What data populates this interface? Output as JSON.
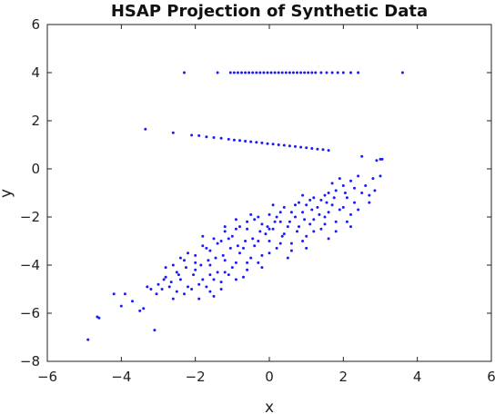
{
  "chart_data": {
    "type": "scatter",
    "title": "HSAP Projection of Synthetic Data",
    "xlabel": "x",
    "ylabel": "y",
    "xlim": [
      -6,
      6
    ],
    "ylim": [
      -8,
      6
    ],
    "xticks": [
      -6,
      -4,
      -2,
      0,
      2,
      4,
      6
    ],
    "yticks": [
      -8,
      -6,
      -4,
      -2,
      0,
      2,
      4,
      6
    ],
    "xtick_labels": [
      "−6",
      "−4",
      "−2",
      "0",
      "2",
      "4",
      "6"
    ],
    "ytick_labels": [
      "−8",
      "−6",
      "−4",
      "−2",
      "0",
      "2",
      "4",
      "6"
    ],
    "grid": false,
    "marker_color": "#1a1aff",
    "series": [
      {
        "group": "band-y4",
        "points": [
          [
            -2.3,
            4.0
          ],
          [
            -1.4,
            4.0
          ],
          [
            -1.05,
            4.0
          ],
          [
            -0.95,
            4.0
          ],
          [
            -0.85,
            4.0
          ],
          [
            -0.75,
            4.0
          ],
          [
            -0.65,
            4.0
          ],
          [
            -0.55,
            4.0
          ],
          [
            -0.45,
            4.0
          ],
          [
            -0.35,
            4.0
          ],
          [
            -0.25,
            4.0
          ],
          [
            -0.15,
            4.0
          ],
          [
            -0.05,
            4.0
          ],
          [
            0.05,
            4.0
          ],
          [
            0.15,
            4.0
          ],
          [
            0.25,
            4.0
          ],
          [
            0.35,
            4.0
          ],
          [
            0.45,
            4.0
          ],
          [
            0.55,
            4.0
          ],
          [
            0.65,
            4.0
          ],
          [
            0.75,
            4.0
          ],
          [
            0.85,
            4.0
          ],
          [
            0.95,
            4.0
          ],
          [
            1.05,
            4.0
          ],
          [
            1.15,
            4.0
          ],
          [
            1.25,
            4.0
          ],
          [
            1.4,
            4.0
          ],
          [
            1.55,
            4.0
          ],
          [
            1.7,
            4.0
          ],
          [
            1.85,
            4.0
          ],
          [
            2.0,
            4.0
          ],
          [
            2.2,
            4.0
          ],
          [
            2.4,
            4.0
          ],
          [
            3.6,
            4.0
          ]
        ]
      },
      {
        "group": "line-upper",
        "points": [
          [
            -3.35,
            1.65
          ],
          [
            -2.6,
            1.5
          ],
          [
            -2.1,
            1.4
          ],
          [
            -1.9,
            1.38
          ],
          [
            -1.7,
            1.33
          ],
          [
            -1.5,
            1.3
          ],
          [
            -1.3,
            1.27
          ],
          [
            -1.1,
            1.23
          ],
          [
            -0.95,
            1.2
          ],
          [
            -0.8,
            1.18
          ],
          [
            -0.65,
            1.15
          ],
          [
            -0.5,
            1.13
          ],
          [
            -0.35,
            1.1
          ],
          [
            -0.2,
            1.08
          ],
          [
            -0.05,
            1.05
          ],
          [
            0.1,
            1.03
          ],
          [
            0.25,
            1.0
          ],
          [
            0.4,
            0.98
          ],
          [
            0.55,
            0.95
          ],
          [
            0.7,
            0.93
          ],
          [
            0.85,
            0.9
          ],
          [
            1.0,
            0.88
          ],
          [
            1.15,
            0.85
          ],
          [
            1.3,
            0.82
          ],
          [
            1.45,
            0.8
          ],
          [
            1.6,
            0.77
          ],
          [
            2.5,
            0.52
          ],
          [
            3.0,
            0.4
          ]
        ]
      },
      {
        "group": "cloud",
        "points": [
          [
            -4.9,
            -7.1
          ],
          [
            -4.6,
            -6.2
          ],
          [
            -4.65,
            -6.15
          ],
          [
            -4.2,
            -5.2
          ],
          [
            -3.9,
            -5.2
          ],
          [
            -4.0,
            -5.7
          ],
          [
            -3.7,
            -5.5
          ],
          [
            -3.5,
            -5.9
          ],
          [
            -3.1,
            -6.7
          ],
          [
            -3.2,
            -5.0
          ],
          [
            -3.0,
            -4.8
          ],
          [
            -2.8,
            -4.5
          ],
          [
            -2.6,
            -4.0
          ],
          [
            -2.5,
            -4.3
          ],
          [
            -2.3,
            -3.8
          ],
          [
            -2.2,
            -3.5
          ],
          [
            -2.0,
            -3.6
          ],
          [
            -1.8,
            -3.2
          ],
          [
            -1.6,
            -3.4
          ],
          [
            -1.5,
            -2.9
          ],
          [
            -1.3,
            -3.0
          ],
          [
            -1.2,
            -2.6
          ],
          [
            -1.0,
            -2.8
          ],
          [
            -0.8,
            -2.4
          ],
          [
            -0.6,
            -2.5
          ],
          [
            -0.4,
            -2.1
          ],
          [
            -0.2,
            -2.3
          ],
          [
            0.0,
            -1.9
          ],
          [
            0.2,
            -2.0
          ],
          [
            0.4,
            -1.6
          ],
          [
            0.6,
            -1.8
          ],
          [
            0.8,
            -1.4
          ],
          [
            1.0,
            -1.5
          ],
          [
            1.2,
            -1.2
          ],
          [
            1.4,
            -1.3
          ],
          [
            1.6,
            -1.0
          ],
          [
            1.8,
            -0.9
          ],
          [
            2.0,
            -0.7
          ],
          [
            2.2,
            -0.5
          ],
          [
            2.4,
            -0.3
          ],
          [
            2.6,
            -0.7
          ],
          [
            2.8,
            -0.4
          ],
          [
            3.0,
            -0.3
          ],
          [
            2.9,
            0.35
          ],
          [
            3.05,
            0.4
          ],
          [
            1.9,
            -0.4
          ],
          [
            -2.4,
            -4.6
          ],
          [
            -2.2,
            -4.9
          ],
          [
            -2.0,
            -4.2
          ],
          [
            -1.8,
            -4.6
          ],
          [
            -1.6,
            -4.0
          ],
          [
            -1.4,
            -4.3
          ],
          [
            -1.2,
            -3.8
          ],
          [
            -1.0,
            -4.1
          ],
          [
            -0.8,
            -3.5
          ],
          [
            -0.6,
            -3.9
          ],
          [
            -0.4,
            -3.2
          ],
          [
            -0.2,
            -3.6
          ],
          [
            0.0,
            -3.0
          ],
          [
            0.2,
            -3.3
          ],
          [
            0.4,
            -2.7
          ],
          [
            0.6,
            -3.1
          ],
          [
            0.8,
            -2.4
          ],
          [
            1.0,
            -2.8
          ],
          [
            1.2,
            -2.1
          ],
          [
            1.4,
            -2.5
          ],
          [
            1.6,
            -1.8
          ],
          [
            1.8,
            -2.2
          ],
          [
            2.0,
            -1.6
          ],
          [
            2.2,
            -1.9
          ],
          [
            -2.7,
            -4.9
          ],
          [
            -2.5,
            -5.1
          ],
          [
            -2.1,
            -5.0
          ],
          [
            -1.7,
            -4.9
          ],
          [
            -1.5,
            -5.3
          ],
          [
            -1.3,
            -4.7
          ],
          [
            -2.9,
            -5.0
          ],
          [
            -2.6,
            -5.4
          ],
          [
            -2.3,
            -5.2
          ],
          [
            -1.9,
            -5.4
          ],
          [
            -1.6,
            -4.4
          ],
          [
            -1.1,
            -4.4
          ],
          [
            -0.9,
            -3.9
          ],
          [
            -0.7,
            -3.3
          ],
          [
            -0.5,
            -3.7
          ],
          [
            -0.3,
            -3.0
          ],
          [
            -0.1,
            -2.7
          ],
          [
            0.1,
            -2.5
          ],
          [
            0.3,
            -2.2
          ],
          [
            0.5,
            -2.4
          ],
          [
            0.7,
            -2.0
          ],
          [
            0.9,
            -1.8
          ],
          [
            1.1,
            -2.3
          ],
          [
            1.3,
            -1.6
          ],
          [
            1.5,
            -2.0
          ],
          [
            1.7,
            -1.5
          ],
          [
            1.9,
            -1.7
          ],
          [
            2.1,
            -1.2
          ],
          [
            2.3,
            -1.4
          ],
          [
            2.5,
            -1.0
          ],
          [
            2.7,
            -1.1
          ],
          [
            2.3,
            -0.8
          ],
          [
            2.05,
            -1.0
          ],
          [
            1.75,
            -1.2
          ],
          [
            1.55,
            -1.4
          ],
          [
            1.35,
            -1.9
          ],
          [
            1.15,
            -1.7
          ],
          [
            0.95,
            -2.1
          ],
          [
            0.75,
            -2.6
          ],
          [
            0.55,
            -2.2
          ],
          [
            0.35,
            -2.8
          ],
          [
            0.15,
            -2.2
          ],
          [
            -0.05,
            -2.4
          ],
          [
            -0.25,
            -2.6
          ],
          [
            -0.45,
            -2.9
          ],
          [
            -0.65,
            -3.0
          ],
          [
            -0.85,
            -3.2
          ],
          [
            -1.05,
            -3.3
          ],
          [
            -1.25,
            -3.6
          ],
          [
            -1.45,
            -3.7
          ],
          [
            -1.65,
            -3.8
          ],
          [
            -1.85,
            -4.0
          ],
          [
            -2.05,
            -4.4
          ],
          [
            -2.25,
            -4.1
          ],
          [
            -2.45,
            -4.4
          ],
          [
            -2.65,
            -4.7
          ],
          [
            -2.85,
            -4.6
          ],
          [
            -3.05,
            -5.2
          ],
          [
            -3.3,
            -4.9
          ],
          [
            -3.4,
            -5.8
          ],
          [
            -2.0,
            -3.9
          ],
          [
            -1.7,
            -3.3
          ],
          [
            -1.4,
            -3.1
          ],
          [
            -1.1,
            -2.9
          ],
          [
            -0.9,
            -2.5
          ],
          [
            -0.6,
            -2.2
          ],
          [
            -0.3,
            -2.0
          ],
          [
            0.0,
            -2.5
          ],
          [
            0.3,
            -1.8
          ],
          [
            0.7,
            -1.5
          ],
          [
            1.1,
            -1.3
          ],
          [
            1.5,
            -1.1
          ],
          [
            -1.9,
            -4.8
          ],
          [
            -1.5,
            -4.6
          ],
          [
            -1.2,
            -4.3
          ],
          [
            -0.9,
            -4.6
          ],
          [
            -0.6,
            -4.2
          ],
          [
            -0.3,
            -3.9
          ],
          [
            0.0,
            -3.5
          ],
          [
            0.3,
            -3.1
          ],
          [
            0.6,
            -3.4
          ],
          [
            0.9,
            -3.0
          ],
          [
            1.2,
            -2.6
          ],
          [
            1.5,
            -2.3
          ],
          [
            1.8,
            -2.6
          ],
          [
            2.1,
            -2.2
          ],
          [
            2.4,
            -1.7
          ],
          [
            2.7,
            -1.4
          ],
          [
            2.85,
            -0.9
          ],
          [
            2.2,
            -2.4
          ],
          [
            -1.6,
            -5.1
          ],
          [
            -2.4,
            -3.7
          ],
          [
            -2.8,
            -4.1
          ],
          [
            -1.3,
            -5.0
          ],
          [
            -0.7,
            -4.5
          ],
          [
            -0.2,
            -4.1
          ],
          [
            0.5,
            -3.7
          ],
          [
            1.0,
            -3.3
          ],
          [
            1.6,
            -2.9
          ],
          [
            -0.5,
            -1.9
          ],
          [
            -0.9,
            -2.1
          ],
          [
            0.1,
            -1.5
          ],
          [
            0.9,
            -1.1
          ],
          [
            1.7,
            -0.6
          ],
          [
            -1.2,
            -2.4
          ],
          [
            -1.8,
            -2.8
          ]
        ]
      }
    ]
  }
}
